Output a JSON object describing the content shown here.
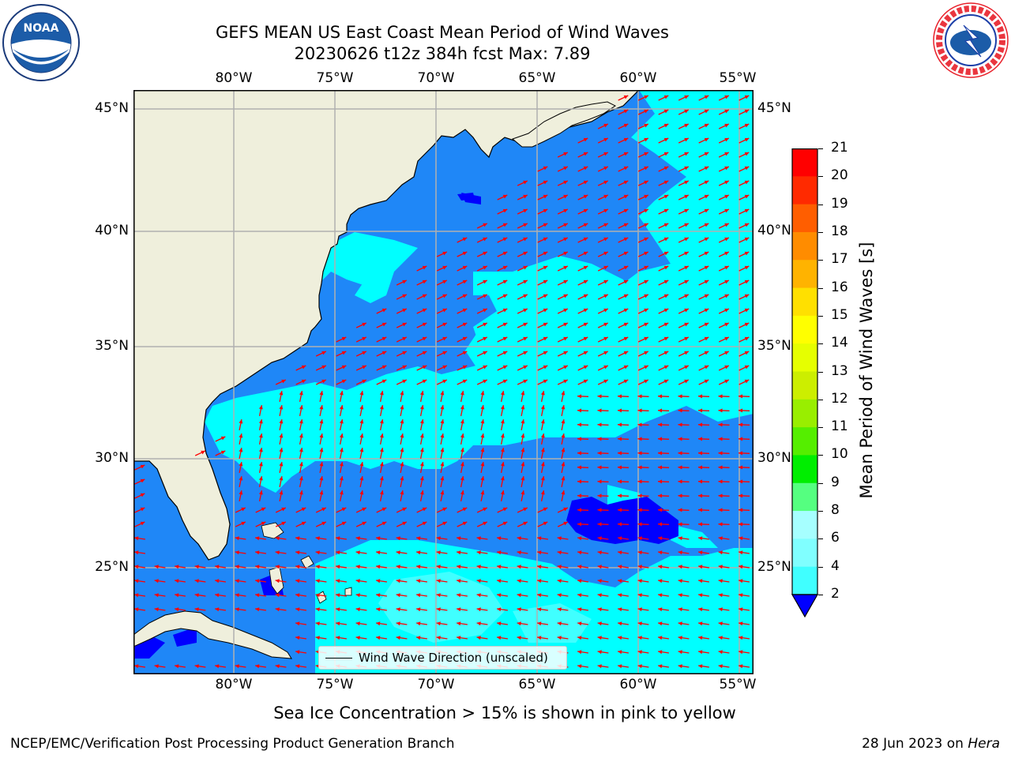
{
  "title": {
    "line1": "GEFS MEAN US East Coast Mean Period of Wind Waves",
    "line2": "20230626 t12z 384h fcst   Max: 7.89"
  },
  "map": {
    "lon_ticks": [
      "80°W",
      "75°W",
      "70°W",
      "65°W",
      "60°W",
      "55°W"
    ],
    "lat_ticks": [
      "45°N",
      "40°N",
      "35°N",
      "30°N",
      "25°N"
    ],
    "lon_range": [
      -85,
      -54.5
    ],
    "lat_range": [
      20.5,
      46
    ],
    "colors": {
      "land": "#efefdc",
      "ocean_2_4": "#1f87f7",
      "ocean_4_6": "#00ffff",
      "ocean_lt2": "#0000ff",
      "arrows": "#ff0000",
      "grid": "#b0b0b0"
    }
  },
  "legend": {
    "label": "Wind Wave Direction (unscaled)"
  },
  "colorbar": {
    "title": "Mean Period of Wind Waves [s]",
    "ticks": [
      "2",
      "4",
      "6",
      "8",
      "9",
      "10",
      "11",
      "12",
      "13",
      "14",
      "15",
      "16",
      "17",
      "18",
      "19",
      "20",
      "21"
    ],
    "colors": [
      "#0b75f1",
      "#00ffff",
      "#40ffff",
      "#80ffff",
      "#a6ffff",
      "#55ff80",
      "#00ee00",
      "#55ee00",
      "#99ee00",
      "#ccee00",
      "#e6ff00",
      "#ffff00",
      "#ffe000",
      "#ffb300",
      "#ff8c00",
      "#ff5e00",
      "#ff2a00",
      "#ff0000"
    ]
  },
  "caption": "Sea Ice Concentration > 15% is shown in pink to yellow",
  "footer": {
    "left": "NCEP/EMC/Verification Post Processing Product Generation Branch",
    "right_date": "28 Jun 2023 on ",
    "right_machine": "Hera"
  },
  "logos": {
    "noaa": "NOAA",
    "nws": "NATIONAL WEATHER SERVICE"
  }
}
